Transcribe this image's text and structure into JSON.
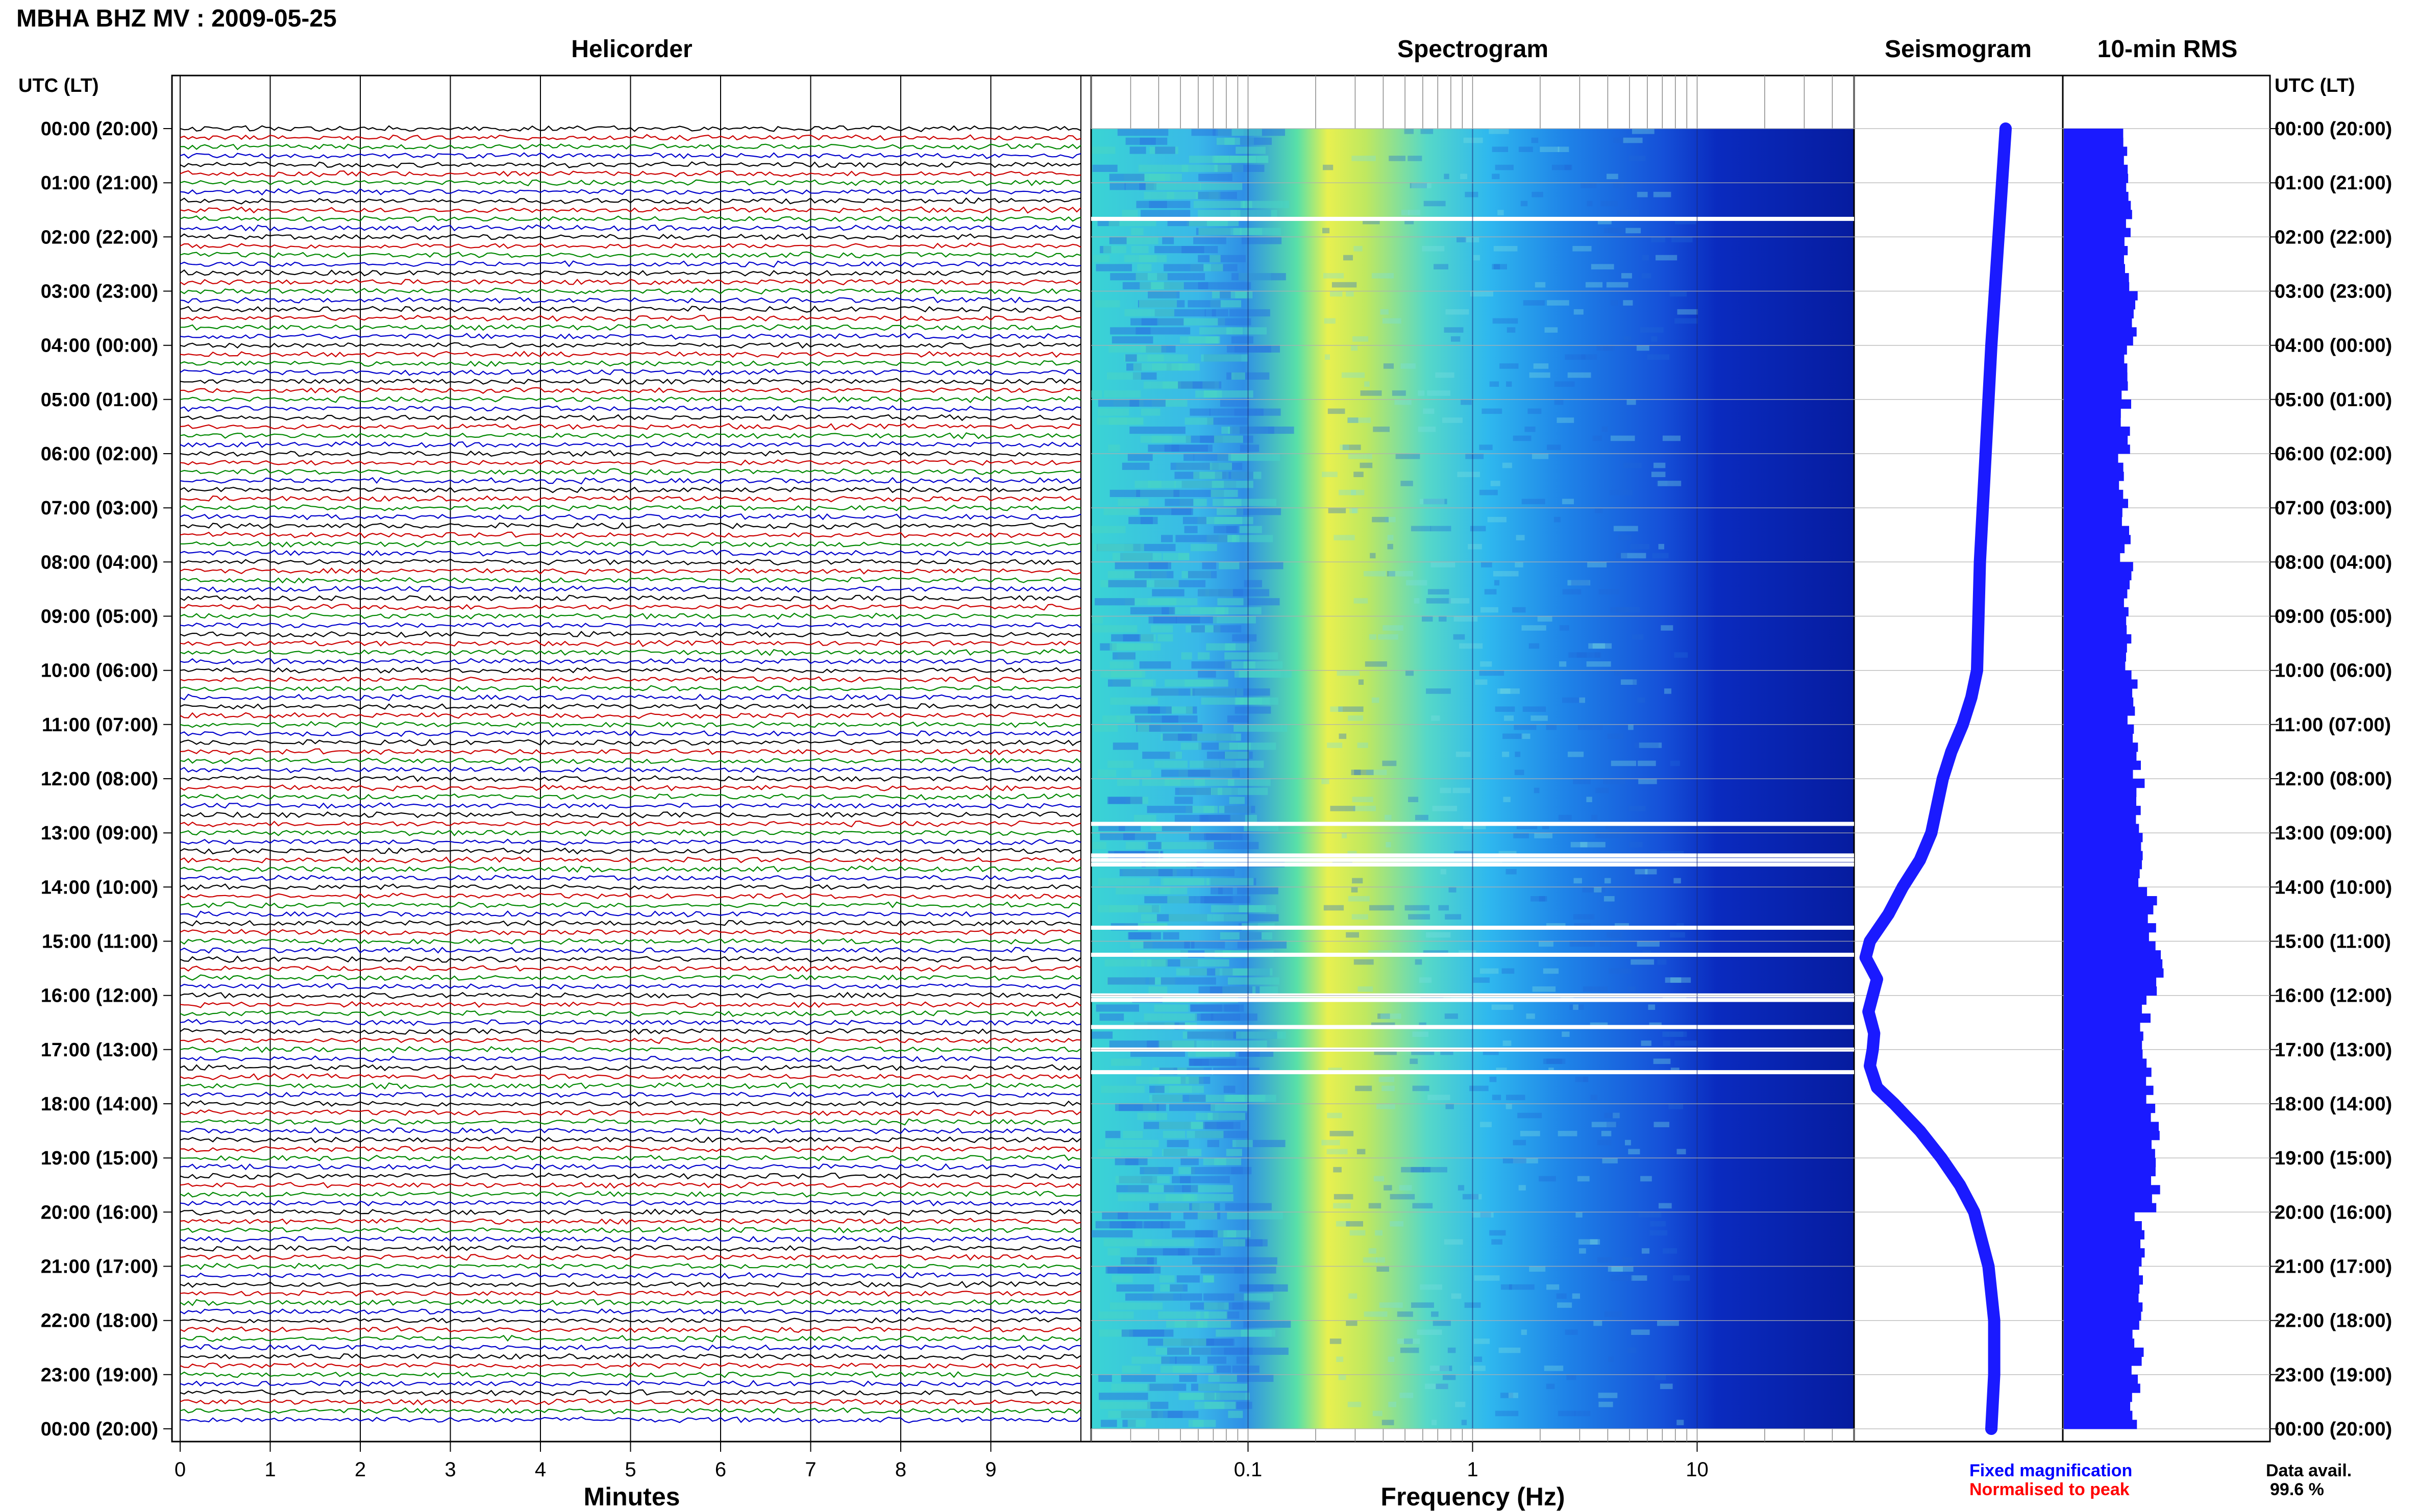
{
  "header": {
    "title": "MBHA BHZ MV : 2009-05-25"
  },
  "panels": {
    "helicorder": "Helicorder",
    "spectrogram": "Spectrogram",
    "seismogram": "Seismogram",
    "rms": "10-min RMS"
  },
  "axes": {
    "left_header": "UTC (LT)",
    "right_header": "UTC (LT)",
    "helicorder_xlabel": "Minutes",
    "spectrogram_xlabel": "Frequency (Hz)",
    "minute_ticks": [
      "0",
      "1",
      "2",
      "3",
      "4",
      "5",
      "6",
      "7",
      "8",
      "9"
    ],
    "freq_ticks": [
      "0.1",
      "1",
      "10"
    ],
    "time_labels": [
      "00:00 (20:00)",
      "01:00 (21:00)",
      "02:00 (22:00)",
      "03:00 (23:00)",
      "04:00 (00:00)",
      "05:00 (01:00)",
      "06:00 (02:00)",
      "07:00 (03:00)",
      "08:00 (04:00)",
      "09:00 (05:00)",
      "10:00 (06:00)",
      "11:00 (07:00)",
      "12:00 (08:00)",
      "13:00 (09:00)",
      "14:00 (10:00)",
      "15:00 (11:00)",
      "16:00 (12:00)",
      "17:00 (13:00)",
      "18:00 (14:00)",
      "19:00 (15:00)",
      "20:00 (16:00)",
      "21:00 (17:00)",
      "22:00 (18:00)",
      "23:00 (19:00)",
      "00:00 (20:00)"
    ]
  },
  "legend": {
    "fixed": "Fixed magnification",
    "normalised": "Normalised to peak",
    "data_avail_label": "Data avail.",
    "data_avail_value": "99.6 %"
  },
  "colors": {
    "trace_cycle": [
      "#000000",
      "#cc0000",
      "#008800",
      "#0000cc"
    ],
    "seismogram": "#1a1aff",
    "rms": "#1a1aff",
    "normalised_text": "#ff0000",
    "fixed_text": "#0000ff"
  },
  "chart_data": {
    "type": "heatmap",
    "station": "MBHA BHZ MV",
    "date": "2009-05-25",
    "helicorder": {
      "x_minutes": [
        0,
        10
      ],
      "rows_per_hour": 6,
      "hours": 24,
      "row_minutes": 10
    },
    "spectrogram": {
      "xscale": "log",
      "xlim_hz": [
        0.02,
        50
      ],
      "peak_band_hz": [
        0.25,
        0.45
      ],
      "data_gaps_utc": [
        "01:40",
        "12:50",
        "13:25",
        "13:30",
        "13:35",
        "14:45",
        "15:15",
        "16:00",
        "16:05",
        "16:35",
        "17:00",
        "17:25"
      ]
    },
    "seismogram_envelope": {
      "hours_utc": [
        0,
        2,
        4,
        6,
        8,
        9,
        10,
        10.5,
        11,
        11.5,
        12,
        12.5,
        13,
        13.5,
        14,
        14.5,
        15,
        15.3,
        15.7,
        16,
        16.3,
        16.7,
        17,
        17.3,
        17.7,
        18,
        18.5,
        19,
        19.5,
        20,
        21,
        22,
        23,
        24
      ],
      "relative_level": [
        0.0,
        0.05,
        0.1,
        0.14,
        0.18,
        0.19,
        0.2,
        0.24,
        0.3,
        0.38,
        0.44,
        0.48,
        0.52,
        0.6,
        0.72,
        0.82,
        0.95,
        0.98,
        0.9,
        0.93,
        0.96,
        0.92,
        0.93,
        0.95,
        0.9,
        0.78,
        0.6,
        0.45,
        0.32,
        0.22,
        0.12,
        0.08,
        0.08,
        0.1
      ]
    },
    "rms_10min": {
      "hours_utc": [
        0,
        1,
        2,
        3,
        4,
        5,
        6,
        7,
        8,
        9,
        10,
        11,
        12,
        13,
        14,
        15,
        16,
        17,
        18,
        19,
        20,
        21,
        22,
        23
      ],
      "relative_amplitude": [
        0.6,
        0.62,
        0.64,
        0.66,
        0.6,
        0.6,
        0.58,
        0.6,
        0.62,
        0.62,
        0.66,
        0.72,
        0.74,
        0.78,
        0.85,
        0.92,
        0.8,
        0.82,
        0.9,
        0.88,
        0.75,
        0.72,
        0.72,
        0.7
      ]
    }
  }
}
